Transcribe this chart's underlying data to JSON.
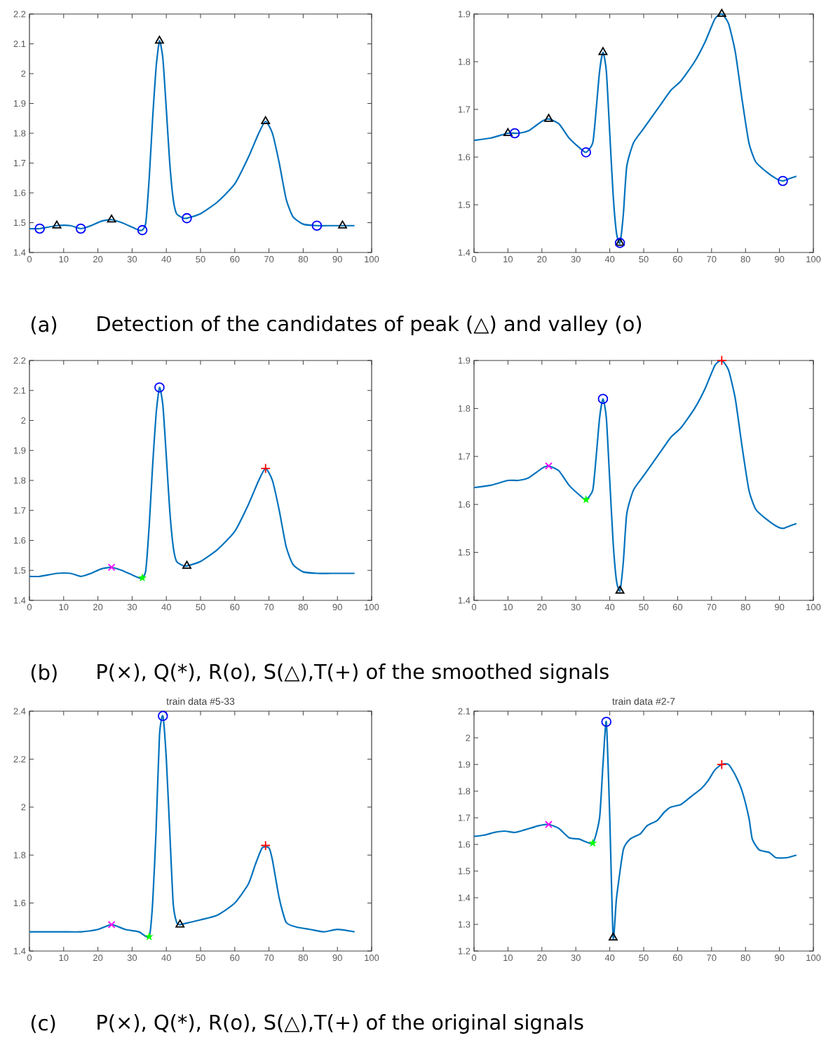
{
  "chart_data": [
    {
      "type": "line",
      "annotations": [
        "(a)",
        "Detection of the candidates of peak (△) and valley (o)"
      ],
      "xlim": [
        0,
        100
      ],
      "xticks": [
        0,
        10,
        20,
        30,
        40,
        50,
        60,
        70,
        80,
        90,
        100
      ],
      "ylim": [
        1.4,
        2.2
      ],
      "yticks": [
        1.4,
        1.5,
        1.6,
        1.7,
        1.8,
        1.9,
        2,
        2.1,
        2.2
      ],
      "series": [
        {
          "color": "#0072bd",
          "x": [
            0,
            3,
            8,
            12,
            15,
            18,
            21,
            24,
            27,
            30,
            32,
            33,
            34,
            35,
            36,
            37,
            38,
            39,
            40,
            41,
            42,
            43,
            45,
            46,
            50,
            55,
            60,
            64,
            67,
            69,
            71,
            73,
            75,
            77,
            80,
            84,
            88,
            92,
            95
          ],
          "values": [
            1.48,
            1.48,
            1.49,
            1.49,
            1.48,
            1.49,
            1.505,
            1.51,
            1.5,
            1.485,
            1.475,
            1.475,
            1.5,
            1.65,
            1.85,
            2.02,
            2.11,
            2.05,
            1.88,
            1.7,
            1.58,
            1.53,
            1.515,
            1.515,
            1.53,
            1.57,
            1.63,
            1.72,
            1.8,
            1.84,
            1.8,
            1.7,
            1.58,
            1.52,
            1.495,
            1.49,
            1.49,
            1.49,
            1.49
          ]
        },
        {
          "type": "scatter",
          "marker": "triangle",
          "color": "#000000",
          "x": [
            8,
            24,
            38,
            69,
            91.5
          ],
          "values": [
            1.49,
            1.51,
            2.11,
            1.84,
            1.49
          ]
        },
        {
          "type": "scatter",
          "marker": "circle",
          "color": "#0000ff",
          "x": [
            3,
            15,
            33,
            46,
            84
          ],
          "values": [
            1.48,
            1.48,
            1.475,
            1.515,
            1.49
          ]
        }
      ]
    },
    {
      "type": "line",
      "xlim": [
        0,
        100
      ],
      "xticks": [
        0,
        10,
        20,
        30,
        40,
        50,
        60,
        70,
        80,
        90,
        100
      ],
      "ylim": [
        1.4,
        1.9
      ],
      "yticks": [
        1.4,
        1.5,
        1.6,
        1.7,
        1.8,
        1.9
      ],
      "series": [
        {
          "color": "#0072bd",
          "x": [
            0,
            5,
            10,
            13,
            16,
            20,
            22,
            25,
            28,
            31,
            33,
            35,
            36,
            37,
            38,
            39,
            40,
            41,
            42,
            43,
            44,
            45,
            47,
            50,
            55,
            58,
            61,
            65,
            68,
            71,
            73,
            75,
            77,
            79,
            81,
            83,
            86,
            89,
            91,
            93,
            95
          ],
          "values": [
            1.635,
            1.64,
            1.65,
            1.65,
            1.655,
            1.675,
            1.68,
            1.67,
            1.64,
            1.62,
            1.61,
            1.63,
            1.7,
            1.78,
            1.82,
            1.78,
            1.65,
            1.52,
            1.44,
            1.42,
            1.48,
            1.58,
            1.63,
            1.66,
            1.71,
            1.74,
            1.76,
            1.8,
            1.84,
            1.89,
            1.9,
            1.88,
            1.82,
            1.72,
            1.63,
            1.59,
            1.57,
            1.555,
            1.55,
            1.555,
            1.56
          ]
        },
        {
          "type": "scatter",
          "marker": "triangle",
          "color": "#000000",
          "x": [
            10,
            22,
            38,
            43,
            73
          ],
          "values": [
            1.65,
            1.68,
            1.82,
            1.42,
            1.9
          ]
        },
        {
          "type": "scatter",
          "marker": "circle",
          "color": "#0000ff",
          "x": [
            12,
            33,
            43,
            91
          ],
          "values": [
            1.65,
            1.61,
            1.42,
            1.55
          ]
        }
      ]
    },
    {
      "type": "line",
      "annotations": [
        "(b)",
        "P(×), Q(*), R(o), S(△),T(+) of the smoothed signals"
      ],
      "xlim": [
        0,
        100
      ],
      "xticks": [
        0,
        10,
        20,
        30,
        40,
        50,
        60,
        70,
        80,
        90,
        100
      ],
      "ylim": [
        1.4,
        2.2
      ],
      "yticks": [
        1.4,
        1.5,
        1.6,
        1.7,
        1.8,
        1.9,
        2,
        2.1,
        2.2
      ],
      "series": [
        {
          "color": "#0072bd",
          "x": [
            0,
            3,
            8,
            12,
            15,
            18,
            21,
            24,
            27,
            30,
            32,
            33,
            34,
            35,
            36,
            37,
            38,
            39,
            40,
            41,
            42,
            43,
            45,
            46,
            50,
            55,
            60,
            64,
            67,
            69,
            71,
            73,
            75,
            77,
            80,
            84,
            88,
            92,
            95
          ],
          "values": [
            1.48,
            1.48,
            1.49,
            1.49,
            1.48,
            1.49,
            1.505,
            1.51,
            1.5,
            1.485,
            1.475,
            1.475,
            1.5,
            1.65,
            1.85,
            2.02,
            2.11,
            2.05,
            1.88,
            1.7,
            1.58,
            1.53,
            1.515,
            1.515,
            1.53,
            1.57,
            1.63,
            1.72,
            1.8,
            1.84,
            1.8,
            1.7,
            1.58,
            1.52,
            1.495,
            1.49,
            1.49,
            1.49,
            1.49
          ]
        },
        {
          "type": "scatter",
          "marker": "cross",
          "color": "#ff00ff",
          "x": [
            24
          ],
          "values": [
            1.51
          ]
        },
        {
          "type": "scatter",
          "marker": "star",
          "color": "#00ff00",
          "x": [
            33
          ],
          "values": [
            1.475
          ]
        },
        {
          "type": "scatter",
          "marker": "circle",
          "color": "#0000ff",
          "x": [
            38
          ],
          "values": [
            2.11
          ]
        },
        {
          "type": "scatter",
          "marker": "triangle",
          "color": "#000000",
          "x": [
            46
          ],
          "values": [
            1.515
          ]
        },
        {
          "type": "scatter",
          "marker": "plus",
          "color": "#ff0000",
          "x": [
            69
          ],
          "values": [
            1.84
          ]
        }
      ]
    },
    {
      "type": "line",
      "xlim": [
        0,
        100
      ],
      "xticks": [
        0,
        10,
        20,
        30,
        40,
        50,
        60,
        70,
        80,
        90,
        100
      ],
      "ylim": [
        1.4,
        1.9
      ],
      "yticks": [
        1.4,
        1.5,
        1.6,
        1.7,
        1.8,
        1.9
      ],
      "series": [
        {
          "color": "#0072bd",
          "x": [
            0,
            5,
            10,
            13,
            16,
            20,
            22,
            25,
            28,
            31,
            33,
            35,
            36,
            37,
            38,
            39,
            40,
            41,
            42,
            43,
            44,
            45,
            47,
            50,
            55,
            58,
            61,
            65,
            68,
            71,
            73,
            75,
            77,
            79,
            81,
            83,
            86,
            89,
            91,
            93,
            95
          ],
          "values": [
            1.635,
            1.64,
            1.65,
            1.65,
            1.655,
            1.675,
            1.68,
            1.67,
            1.64,
            1.62,
            1.61,
            1.63,
            1.7,
            1.78,
            1.82,
            1.78,
            1.65,
            1.52,
            1.44,
            1.42,
            1.48,
            1.58,
            1.63,
            1.66,
            1.71,
            1.74,
            1.76,
            1.8,
            1.84,
            1.89,
            1.9,
            1.88,
            1.82,
            1.72,
            1.63,
            1.59,
            1.57,
            1.555,
            1.55,
            1.555,
            1.56
          ]
        },
        {
          "type": "scatter",
          "marker": "cross",
          "color": "#ff00ff",
          "x": [
            22
          ],
          "values": [
            1.68
          ]
        },
        {
          "type": "scatter",
          "marker": "star",
          "color": "#00ff00",
          "x": [
            33
          ],
          "values": [
            1.61
          ]
        },
        {
          "type": "scatter",
          "marker": "circle",
          "color": "#0000ff",
          "x": [
            38
          ],
          "values": [
            1.82
          ]
        },
        {
          "type": "scatter",
          "marker": "triangle",
          "color": "#000000",
          "x": [
            43
          ],
          "values": [
            1.42
          ]
        },
        {
          "type": "scatter",
          "marker": "plus",
          "color": "#ff0000",
          "x": [
            73
          ],
          "values": [
            1.9
          ]
        }
      ]
    },
    {
      "type": "line",
      "title": "train data #5-33",
      "annotations": [
        "(c)",
        "P(×), Q(*), R(o), S(△),T(+) of the original signals"
      ],
      "xlim": [
        0,
        100
      ],
      "xticks": [
        0,
        10,
        20,
        30,
        40,
        50,
        60,
        70,
        80,
        90,
        100
      ],
      "ylim": [
        1.4,
        2.4
      ],
      "yticks": [
        1.4,
        1.6,
        1.8,
        2,
        2.2,
        2.4
      ],
      "series": [
        {
          "color": "#0072bd",
          "x": [
            0,
            5,
            10,
            15,
            20,
            24,
            28,
            32,
            35,
            36,
            37,
            38,
            39,
            40,
            41,
            42,
            43,
            44,
            47,
            50,
            55,
            60,
            64,
            66,
            68,
            70,
            71,
            73,
            75,
            78,
            82,
            86,
            90,
            95
          ],
          "values": [
            1.48,
            1.48,
            1.48,
            1.48,
            1.49,
            1.51,
            1.49,
            1.48,
            1.46,
            1.6,
            1.9,
            2.3,
            2.38,
            2.2,
            1.9,
            1.6,
            1.52,
            1.51,
            1.52,
            1.53,
            1.55,
            1.6,
            1.68,
            1.76,
            1.83,
            1.83,
            1.78,
            1.62,
            1.52,
            1.5,
            1.49,
            1.48,
            1.49,
            1.48
          ]
        },
        {
          "type": "scatter",
          "marker": "cross",
          "color": "#ff00ff",
          "x": [
            24
          ],
          "values": [
            1.51
          ]
        },
        {
          "type": "scatter",
          "marker": "star",
          "color": "#00ff00",
          "x": [
            35
          ],
          "values": [
            1.46
          ]
        },
        {
          "type": "scatter",
          "marker": "circle",
          "color": "#0000ff",
          "x": [
            39
          ],
          "values": [
            2.38
          ]
        },
        {
          "type": "scatter",
          "marker": "triangle",
          "color": "#000000",
          "x": [
            44
          ],
          "values": [
            1.51
          ]
        },
        {
          "type": "scatter",
          "marker": "plus",
          "color": "#ff0000",
          "x": [
            69
          ],
          "values": [
            1.84
          ]
        }
      ]
    },
    {
      "type": "line",
      "title": "train data #2-7",
      "xlim": [
        0,
        100
      ],
      "xticks": [
        0,
        10,
        20,
        30,
        40,
        50,
        60,
        70,
        80,
        90,
        100
      ],
      "ylim": [
        1.2,
        2.1
      ],
      "yticks": [
        1.2,
        1.3,
        1.4,
        1.5,
        1.6,
        1.7,
        1.8,
        1.9,
        2,
        2.1
      ],
      "series": [
        {
          "color": "#0072bd",
          "x": [
            0,
            3,
            6,
            9,
            12,
            15,
            19,
            22,
            25,
            28,
            31,
            35,
            37,
            38,
            39,
            40,
            41,
            42,
            44,
            46,
            49,
            51,
            54,
            56,
            58,
            61,
            64,
            67,
            69,
            71,
            73,
            75,
            77,
            79,
            81,
            82,
            84,
            87,
            89,
            92,
            95
          ],
          "values": [
            1.63,
            1.635,
            1.645,
            1.65,
            1.645,
            1.655,
            1.67,
            1.675,
            1.66,
            1.625,
            1.62,
            1.605,
            1.7,
            1.9,
            2.06,
            1.7,
            1.25,
            1.4,
            1.58,
            1.62,
            1.64,
            1.67,
            1.69,
            1.72,
            1.74,
            1.75,
            1.78,
            1.81,
            1.84,
            1.88,
            1.9,
            1.9,
            1.86,
            1.8,
            1.7,
            1.62,
            1.58,
            1.57,
            1.55,
            1.55,
            1.56
          ]
        },
        {
          "type": "scatter",
          "marker": "cross",
          "color": "#ff00ff",
          "x": [
            22
          ],
          "values": [
            1.675
          ]
        },
        {
          "type": "scatter",
          "marker": "star",
          "color": "#00ff00",
          "x": [
            35
          ],
          "values": [
            1.605
          ]
        },
        {
          "type": "scatter",
          "marker": "circle",
          "color": "#0000ff",
          "x": [
            39
          ],
          "values": [
            2.06
          ]
        },
        {
          "type": "scatter",
          "marker": "triangle",
          "color": "#000000",
          "x": [
            41
          ],
          "values": [
            1.25
          ]
        },
        {
          "type": "scatter",
          "marker": "plus",
          "color": "#ff0000",
          "x": [
            73
          ],
          "values": [
            1.9
          ]
        }
      ]
    }
  ]
}
